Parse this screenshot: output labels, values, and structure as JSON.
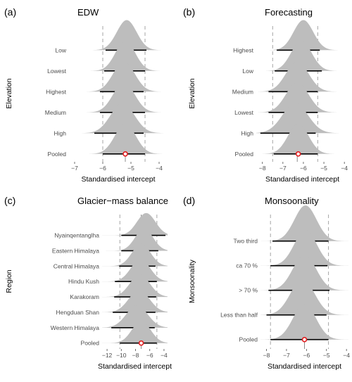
{
  "figure": {
    "background": "#ffffff",
    "density_fill": "#bdbdbd",
    "ci_color": "#000000",
    "point_fill": "#ffffff",
    "point_stroke": "#e31a1c",
    "median_line_color": "#8c8c8c",
    "dashed_line_color": "#a6a6a6"
  },
  "chart_data": [
    {
      "type": "density-ridge",
      "panel_label": "(a)",
      "title": "EDW",
      "xlabel": "Standardised intercept",
      "ylabel": "Elevation",
      "xlim": [
        -7.2,
        -3.7
      ],
      "xticks": [
        -7,
        -6,
        -5,
        -4
      ],
      "median_line": -5.2,
      "dashed_lines": [
        -6.0,
        -4.5
      ],
      "categories": [
        "Low",
        "Lowest",
        "Highest",
        "Medium",
        "High",
        "Pooled"
      ],
      "series": [
        {
          "category": "Low",
          "point": -5.15,
          "ci": [
            -5.9,
            -4.45
          ],
          "sd": 0.35
        },
        {
          "category": "Lowest",
          "point": -5.2,
          "ci": [
            -5.95,
            -4.5
          ],
          "sd": 0.35
        },
        {
          "category": "Highest",
          "point": -5.25,
          "ci": [
            -6.1,
            -4.55
          ],
          "sd": 0.38
        },
        {
          "category": "Medium",
          "point": -5.25,
          "ci": [
            -6.1,
            -4.5
          ],
          "sd": 0.38
        },
        {
          "category": "High",
          "point": -5.3,
          "ci": [
            -6.3,
            -4.55
          ],
          "sd": 0.42
        },
        {
          "category": "Pooled",
          "point": -5.2,
          "ci": [
            -6.0,
            -4.5
          ],
          "sd": 0.37
        }
      ]
    },
    {
      "type": "density-ridge",
      "panel_label": "(b)",
      "title": "Forecasting",
      "xlabel": "Standardised intercept",
      "ylabel": "Elevation",
      "xlim": [
        -8.3,
        -3.8
      ],
      "xticks": [
        -8,
        -7,
        -6,
        -5,
        -4
      ],
      "median_line": -6.3,
      "dashed_lines": [
        -7.5,
        -5.3
      ],
      "categories": [
        "Highest",
        "Low",
        "Medium",
        "Lowest",
        "High",
        "Pooled"
      ],
      "series": [
        {
          "category": "Highest",
          "point": -6.0,
          "ci": [
            -7.3,
            -5.2
          ],
          "sd": 0.48
        },
        {
          "category": "Low",
          "point": -6.1,
          "ci": [
            -7.4,
            -5.1
          ],
          "sd": 0.5
        },
        {
          "category": "Medium",
          "point": -6.3,
          "ci": [
            -7.7,
            -5.3
          ],
          "sd": 0.55
        },
        {
          "category": "Lowest",
          "point": -6.3,
          "ci": [
            -7.7,
            -5.3
          ],
          "sd": 0.55
        },
        {
          "category": "High",
          "point": -6.4,
          "ci": [
            -8.1,
            -5.4
          ],
          "sd": 0.62
        },
        {
          "category": "Pooled",
          "point": -6.25,
          "ci": [
            -7.45,
            -5.3
          ],
          "sd": 0.5
        }
      ]
    },
    {
      "type": "density-ridge",
      "panel_label": "(c)",
      "title": "Glacier−mass balance",
      "xlabel": "Standardised intercept",
      "ylabel": "Region",
      "xlim": [
        -12.7,
        -3.5
      ],
      "xticks": [
        -12,
        -10,
        -8,
        -6,
        -4
      ],
      "median_line": -7.2,
      "dashed_lines": [
        -10.2,
        -5.0
      ],
      "categories": [
        "Nyainqentanglha",
        "Eastern Himalaya",
        "Central Himalaya",
        "Hindu Kush",
        "Karakoram",
        "Hengduan Shan",
        "Western Himalaya",
        "Pooled"
      ],
      "series": [
        {
          "category": "Nyainqentanglha",
          "point": -6.5,
          "ci": [
            -10.0,
            -3.8
          ],
          "sd": 1.3
        },
        {
          "category": "Eastern Himalaya",
          "point": -6.8,
          "ci": [
            -10.0,
            -4.8
          ],
          "sd": 1.25
        },
        {
          "category": "Central Himalaya",
          "point": -7.2,
          "ci": [
            -10.3,
            -5.2
          ],
          "sd": 1.3
        },
        {
          "category": "Hindu Kush",
          "point": -7.3,
          "ci": [
            -10.9,
            -5.0
          ],
          "sd": 1.35
        },
        {
          "category": "Karakoram",
          "point": -7.4,
          "ci": [
            -11.0,
            -5.1
          ],
          "sd": 1.4
        },
        {
          "category": "Hengduan Shan",
          "point": -7.5,
          "ci": [
            -11.2,
            -5.2
          ],
          "sd": 1.45
        },
        {
          "category": "Western Himalaya",
          "point": -7.8,
          "ci": [
            -11.4,
            -5.3
          ],
          "sd": 1.5
        },
        {
          "category": "Pooled",
          "point": -7.2,
          "ci": [
            -10.2,
            -5.0
          ],
          "sd": 1.3
        }
      ]
    },
    {
      "type": "density-ridge",
      "panel_label": "(d)",
      "title": "Monsoonality",
      "xlabel": "Standardised intercept",
      "ylabel": "Monsoonality",
      "xlim": [
        -8.3,
        -3.9
      ],
      "xticks": [
        -8,
        -7,
        -6,
        -5,
        -4
      ],
      "median_line": -6.1,
      "dashed_lines": [
        -7.8,
        -4.9
      ],
      "categories": [
        "Two third",
        "ca  70 %",
        "> 70 %",
        "Less than half",
        "Pooled"
      ],
      "series": [
        {
          "category": "Two third",
          "point": -6.05,
          "ci": [
            -7.7,
            -4.9
          ],
          "sd": 0.55
        },
        {
          "category": "ca  70 %",
          "point": -6.05,
          "ci": [
            -7.8,
            -4.95
          ],
          "sd": 0.56
        },
        {
          "category": "> 70 %",
          "point": -6.1,
          "ci": [
            -7.9,
            -4.85
          ],
          "sd": 0.58
        },
        {
          "category": "Less than half",
          "point": -6.2,
          "ci": [
            -8.0,
            -5.0
          ],
          "sd": 0.6
        },
        {
          "category": "Pooled",
          "point": -6.1,
          "ci": [
            -7.8,
            -4.9
          ],
          "sd": 0.57
        }
      ]
    }
  ]
}
